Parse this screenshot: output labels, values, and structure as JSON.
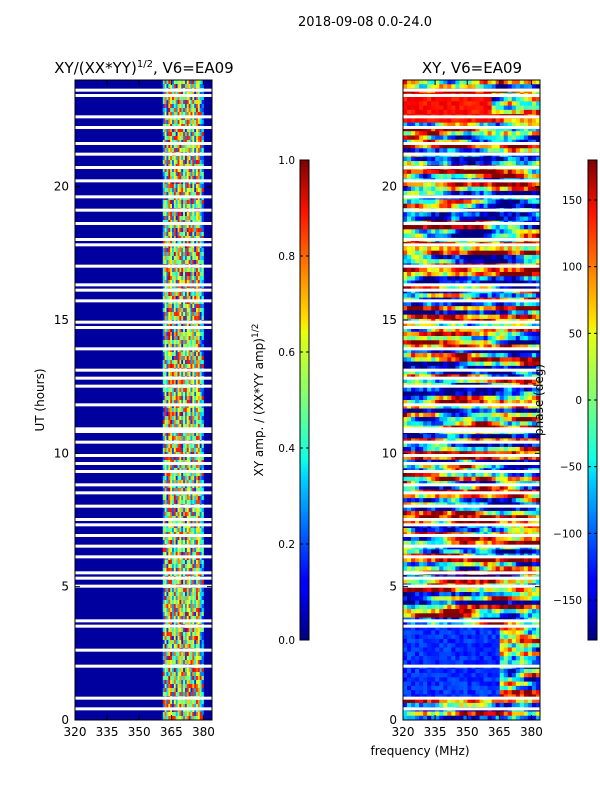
{
  "figure": {
    "suptitle": "2018-09-08 0.0-24.0",
    "shared_xlabel": "frequency (MHz)"
  },
  "colormap": "jet",
  "chart_data": [
    {
      "type": "heatmap",
      "title_main": "XY/(XX*YY)",
      "title_exp": "1/2",
      "title_tail": ", V6=EA09",
      "xlabel": "",
      "ylabel": "UT (hours)",
      "xlim": [
        320,
        384
      ],
      "ylim": [
        0,
        24
      ],
      "xticks": [
        320,
        335,
        350,
        365,
        380
      ],
      "yticks": [
        0,
        5,
        10,
        15,
        20
      ],
      "colorbar": {
        "label_main": "XY amp. / (XX*YY amp)",
        "label_exp": "1/2",
        "vmin": 0,
        "vmax": 1,
        "ticks": [
          "0.0",
          "0.2",
          "0.4",
          "0.6",
          "0.8",
          "1.0"
        ]
      },
      "description_values": "amplitude near 0 below 361 MHz; patchy 0.3-0.9 between 361 and 380 MHz",
      "flagged_rows_ut": [
        0.4,
        0.8,
        2.0,
        2.6,
        3.5,
        3.7,
        5.0,
        5.3,
        5.5,
        6.1,
        6.5,
        6.9,
        7.3,
        7.5,
        8.0,
        8.5,
        8.8,
        9.3,
        9.6,
        9.9,
        10.4,
        10.8,
        10.9,
        11.8,
        12.5,
        12.8,
        13.1,
        13.9,
        14.7,
        14.9,
        15.7,
        16.1,
        16.3,
        17.0,
        17.8,
        18.0,
        18.6,
        19.1,
        19.6,
        20.2,
        20.7,
        21.2,
        21.6,
        22.2,
        22.6,
        23.4,
        23.6
      ]
    },
    {
      "type": "heatmap",
      "title_main": "XY, V6=EA09",
      "xlabel": "",
      "ylabel": "",
      "xlim": [
        320,
        384
      ],
      "ylim": [
        0,
        24
      ],
      "xticks": [
        320,
        335,
        350,
        365,
        380
      ],
      "yticks": [
        0,
        5,
        10,
        15,
        20
      ],
      "colorbar": {
        "label_main": "phase (deg)",
        "vmin": -180,
        "vmax": 180,
        "ticks": [
          "−150",
          "−100",
          "−50",
          "0",
          "50",
          "100",
          "150"
        ],
        "tick_values": [
          -150,
          -100,
          -50,
          0,
          50,
          100,
          150
        ]
      },
      "description_values": "noisy phase across all frequencies and times; coherent phase blocks near 22.5-23.5 UT and 0.8-3.5 UT",
      "flagged_rows_ut": [
        0.4,
        0.8,
        2.0,
        3.5,
        3.7,
        5.0,
        5.3,
        5.5,
        6.1,
        6.5,
        6.9,
        7.3,
        7.5,
        8.0,
        8.5,
        8.8,
        9.3,
        9.6,
        9.9,
        10.4,
        10.8,
        10.9,
        11.8,
        12.5,
        12.8,
        13.1,
        13.9,
        14.7,
        14.9,
        15.7,
        16.1,
        16.3,
        17.0,
        17.8,
        18.0,
        18.6,
        19.1,
        19.6,
        20.2,
        20.7,
        21.2,
        21.6,
        22.2,
        22.6,
        23.4,
        23.6
      ]
    }
  ]
}
